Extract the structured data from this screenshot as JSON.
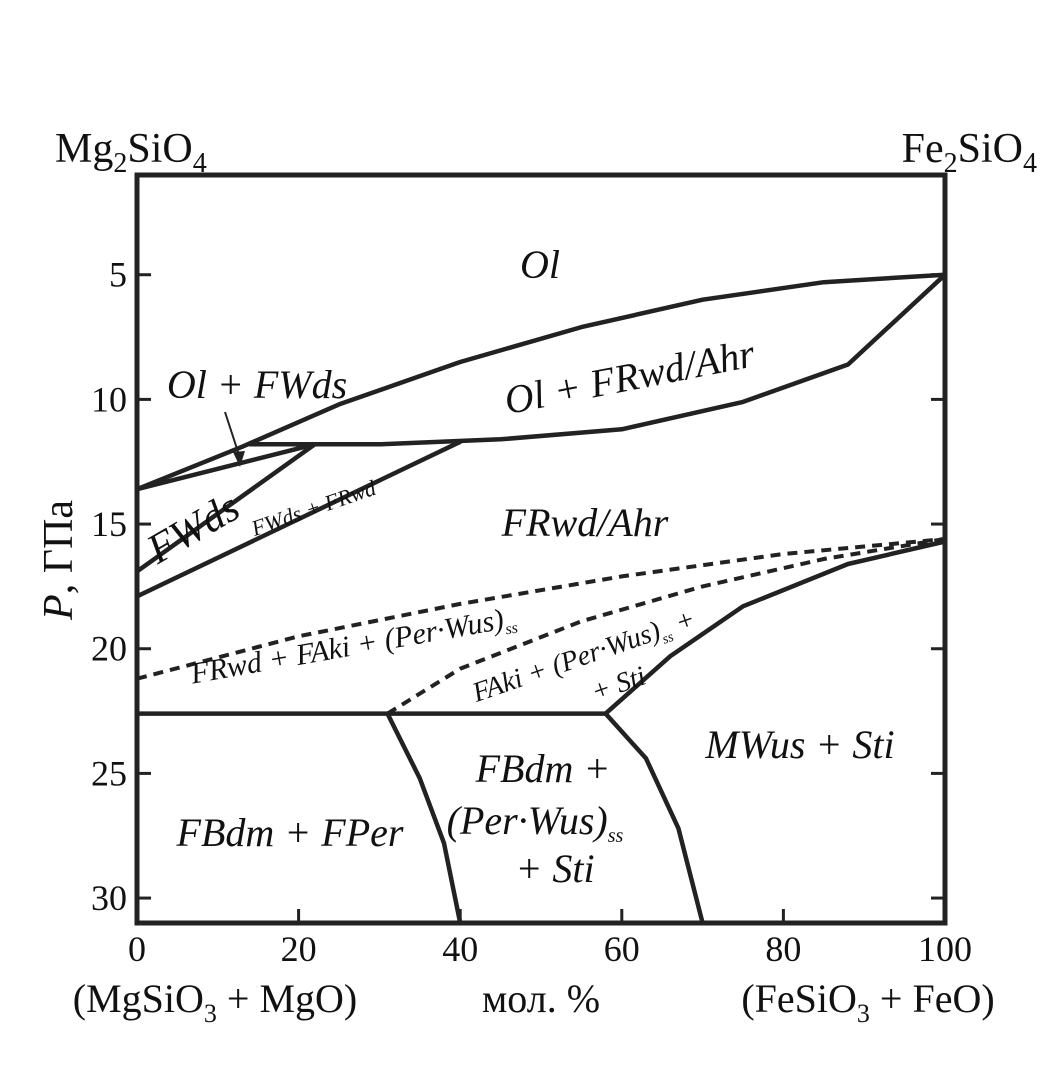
{
  "chart_data": {
    "type": "phase-diagram",
    "top_left_component": {
      "base": "Mg",
      "sub1": "2",
      "mid": "SiO",
      "sub2": "4"
    },
    "top_right_component": {
      "base": "Fe",
      "sub1": "2",
      "mid": "SiO",
      "sub2": "4"
    },
    "bottom_left_label": {
      "pre": "(MgSiO",
      "sub": "3",
      "post": " + MgO)"
    },
    "bottom_right_label": {
      "pre": "(FeSiO",
      "sub": "3",
      "post": " + FeO)"
    },
    "xlabel": "мол. %",
    "ylabel": {
      "var": "P",
      "rest": ", ГПа"
    },
    "xlim": [
      0,
      100
    ],
    "ylim": [
      31,
      1
    ],
    "x_ticks": [
      0,
      20,
      40,
      60,
      80,
      100
    ],
    "y_ticks": [
      5,
      10,
      15,
      20,
      25,
      30
    ],
    "boundaries": [
      {
        "name": "ol-ol-frwd-upper",
        "style": "solid",
        "points": [
          [
            13,
            11.9
          ],
          [
            25,
            10.2
          ],
          [
            40,
            8.5
          ],
          [
            55,
            7.1
          ],
          [
            70,
            6.0
          ],
          [
            85,
            5.3
          ],
          [
            100,
            5.0
          ]
        ]
      },
      {
        "name": "ol-frwd-lower",
        "style": "solid",
        "points": [
          [
            14,
            11.8
          ],
          [
            30,
            11.8
          ],
          [
            45,
            11.6
          ],
          [
            60,
            11.2
          ],
          [
            75,
            10.1
          ],
          [
            88,
            8.6
          ],
          [
            100,
            5.0
          ]
        ]
      },
      {
        "name": "ol-fwds-upper",
        "style": "solid",
        "points": [
          [
            0,
            13.6
          ],
          [
            13,
            11.9
          ]
        ]
      },
      {
        "name": "fwds-upper",
        "style": "solid",
        "points": [
          [
            0,
            13.6
          ],
          [
            22,
            11.8
          ]
        ]
      },
      {
        "name": "fwds-lower",
        "style": "solid",
        "points": [
          [
            0,
            16.9
          ],
          [
            22,
            11.8
          ]
        ]
      },
      {
        "name": "fwds-frwd-lower",
        "style": "solid",
        "points": [
          [
            0,
            17.9
          ],
          [
            40,
            11.7
          ]
        ]
      },
      {
        "name": "frwd-aki-dashed",
        "style": "dashed",
        "points": [
          [
            0,
            21.2
          ],
          [
            20,
            19.5
          ],
          [
            40,
            18.2
          ],
          [
            60,
            17.1
          ],
          [
            80,
            16.2
          ],
          [
            100,
            15.6
          ]
        ]
      },
      {
        "name": "aki-per-dashed",
        "style": "dashed",
        "points": [
          [
            31,
            22.6
          ],
          [
            40,
            20.8
          ],
          [
            55,
            18.9
          ],
          [
            70,
            17.5
          ],
          [
            85,
            16.4
          ],
          [
            100,
            15.6
          ]
        ]
      },
      {
        "name": "mwus-sti-boundary",
        "style": "solid",
        "points": [
          [
            58,
            22.6
          ],
          [
            66,
            20.3
          ],
          [
            75,
            18.3
          ],
          [
            88,
            16.6
          ],
          [
            100,
            15.7
          ]
        ]
      },
      {
        "name": "bdm-line-22-6",
        "style": "solid",
        "points": [
          [
            0,
            22.6
          ],
          [
            58,
            22.6
          ]
        ]
      },
      {
        "name": "bdm-fper-boundary",
        "style": "solid",
        "points": [
          [
            31,
            22.6
          ],
          [
            35,
            25.2
          ],
          [
            38,
            27.8
          ],
          [
            40,
            31
          ]
        ]
      },
      {
        "name": "bdm-pw-boundary",
        "style": "solid",
        "points": [
          [
            58,
            22.6
          ],
          [
            63,
            24.4
          ],
          [
            67,
            27.2
          ],
          [
            70,
            31
          ]
        ]
      }
    ],
    "fields": {
      "ol": "Ol",
      "ol_fwds": "Ol + FWds",
      "ol_frwd": "Ol + FRwd/Ahr",
      "fwds": "FWds",
      "fwds_frwd": "FWds + FRwd",
      "frwd_ahr": "FRwd/Ahr",
      "frwd_aki_pre": "FRwd + FAki + (Per·Wus)",
      "frwd_aki_sub": "ss",
      "aki_per_pre": "FAki + (Per·Wus)",
      "aki_per_sub": "ss",
      "aki_per_post": " +",
      "aki_per_line2": "+ Sti",
      "mwus_sti": "MWus + Sti",
      "fbdm_fper": "FBdm + FPer",
      "fbdm_line1": "FBdm +",
      "fbdm_line2_pre": "(Per·Wus)",
      "fbdm_line2_sub": "ss",
      "fbdm_line3": "+ Sti"
    }
  }
}
